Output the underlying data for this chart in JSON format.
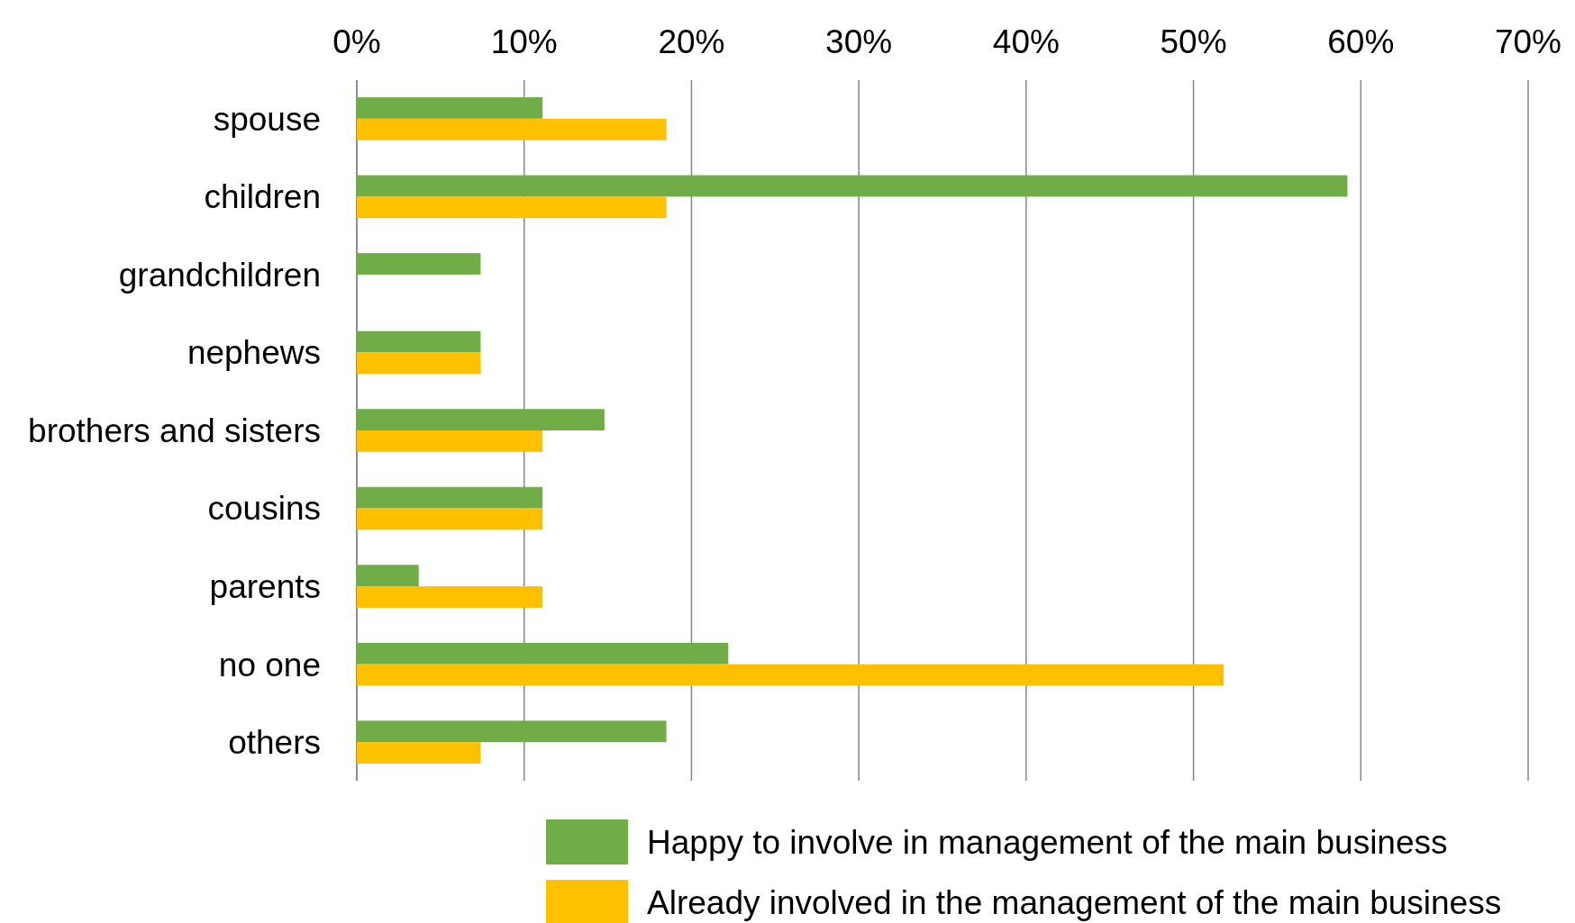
{
  "chart_data": {
    "type": "bar",
    "orientation": "horizontal",
    "categories": [
      "spouse",
      "children",
      "grandchildren",
      "nephews",
      "brothers and sisters",
      "cousins",
      "parents",
      "no one",
      "others"
    ],
    "series": [
      {
        "name": "Happy to involve in management of the main business",
        "color": "#70ad47",
        "values": [
          11.1,
          59.2,
          7.4,
          7.4,
          14.8,
          11.1,
          3.7,
          22.2,
          18.5
        ]
      },
      {
        "name": "Already involved in the management of the main business",
        "color": "#ffc000",
        "values": [
          18.5,
          18.5,
          0,
          7.4,
          11.1,
          11.1,
          11.1,
          51.8,
          7.4
        ]
      }
    ],
    "xlim": [
      0,
      70
    ],
    "xticks": [
      {
        "value": 0,
        "label": "0%"
      },
      {
        "value": 10,
        "label": "10%"
      },
      {
        "value": 20,
        "label": "20%"
      },
      {
        "value": 30,
        "label": "30%"
      },
      {
        "value": 40,
        "label": "40%"
      },
      {
        "value": 50,
        "label": "50%"
      },
      {
        "value": 60,
        "label": "60%"
      },
      {
        "value": 70,
        "label": "70%"
      }
    ],
    "grid": "x",
    "legend": "bottom"
  }
}
